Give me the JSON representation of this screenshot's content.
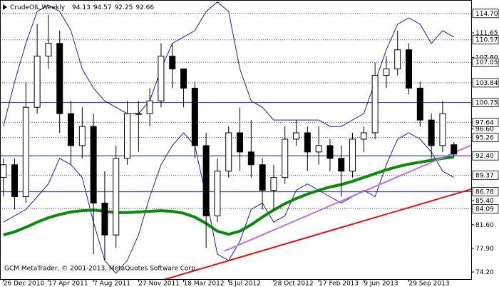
{
  "chart_data": {
    "type": "candlestick",
    "symbol": "CrudeOIL,Weekly",
    "header_ohlc": [
      94.13,
      94.57,
      92.25,
      92.66
    ],
    "footer": "GCM MetaTrader, © 2001-2013, MetaQuotes Software Corp.",
    "categories": [
      "26 Dec 2010",
      null,
      null,
      null,
      "17 Apr 2011",
      null,
      null,
      null,
      "7 Aug 2011",
      null,
      null,
      null,
      "27 Nov 2011",
      null,
      null,
      null,
      "18 Mar 2012",
      null,
      null,
      null,
      "8 Jul 2012",
      null,
      null,
      null,
      "28 Oct 2012",
      null,
      null,
      null,
      "17 Feb 2013",
      null,
      null,
      null,
      "9 Jun 2013",
      null,
      null,
      null,
      "29 Sep 2013",
      null,
      null,
      null,
      null
    ],
    "open": [
      89,
      91,
      86,
      100,
      108,
      110,
      99,
      94,
      97,
      85,
      80,
      92,
      99,
      99,
      101,
      108,
      106,
      103,
      94,
      83,
      90,
      96,
      93,
      91,
      87,
      89,
      95,
      96,
      93,
      94,
      92,
      90,
      95,
      96,
      105,
      106,
      109,
      103,
      98,
      94,
      94.13
    ],
    "high": [
      92,
      92,
      104,
      113,
      114.5,
      112,
      101,
      100,
      99,
      90,
      94,
      101,
      101,
      103,
      110,
      110,
      106,
      104,
      96,
      92,
      97,
      100,
      98,
      92,
      91,
      97,
      98,
      97,
      97,
      95,
      94,
      96,
      97,
      107,
      108,
      112,
      110,
      104,
      99,
      101,
      94.57
    ],
    "low": [
      86,
      84,
      85,
      99,
      106,
      96,
      91,
      92,
      77,
      76,
      78,
      91,
      93,
      97,
      100,
      103,
      100,
      92,
      78,
      82,
      89,
      90,
      89,
      84,
      84,
      88,
      94,
      90,
      91,
      90,
      86,
      89,
      93,
      95,
      103,
      105,
      102,
      97,
      92,
      93,
      92.25
    ],
    "close": [
      91,
      86,
      100,
      108,
      110,
      99,
      94,
      97,
      85,
      80,
      92,
      99,
      99,
      101,
      108,
      106,
      103,
      94,
      83,
      90,
      96,
      93,
      91,
      87,
      89,
      95,
      96,
      93,
      94,
      92,
      90,
      95,
      96,
      105,
      106,
      109,
      103,
      98,
      94,
      99,
      92.66
    ],
    "candle_color": "#000000",
    "series": [
      {
        "color": "#1c1ca8",
        "width": 1,
        "values": [
          97,
          104,
          110,
          115,
          116,
          115,
          112,
          106,
          103,
          101,
          100,
          99,
          99,
          101,
          106,
          110,
          111,
          112,
          115,
          116.5,
          115,
          106,
          101,
          100,
          98,
          98,
          98,
          98,
          98,
          97,
          97,
          98,
          99,
          104,
          109,
          113,
          114,
          113,
          110,
          112,
          111
        ]
      },
      {
        "color": "#1c1ca8",
        "width": 1,
        "values": [
          82,
          83,
          84,
          86,
          88,
          92,
          91,
          89,
          82,
          76,
          74,
          76,
          80,
          86,
          91,
          94,
          96,
          94,
          86,
          77,
          76,
          79,
          84,
          85,
          82,
          83,
          87,
          88,
          87,
          86,
          85,
          86,
          87,
          86,
          91,
          95,
          96,
          95,
          93,
          90,
          89
        ]
      },
      {
        "color": "#0a8a0a",
        "width": 4,
        "values": [
          80,
          80.5,
          81.2,
          82,
          82.7,
          83.2,
          83.6,
          83.8,
          83.9,
          83.7,
          83.5,
          83.5,
          83.6,
          83.7,
          83.8,
          83.7,
          83.4,
          82.8,
          81.8,
          80.6,
          80.1,
          80.6,
          81.6,
          82.8,
          83.9,
          84.9,
          85.7,
          86.4,
          87,
          87.5,
          87.9,
          88.4,
          89,
          89.6,
          90.2,
          90.7,
          91.1,
          91.4,
          91.7,
          92,
          92.2
        ]
      }
    ],
    "trend_lines": [
      {
        "color": "#e01010",
        "x": [
          14.2,
          41.6
        ],
        "y": [
          72.97,
          87.2
        ]
      },
      {
        "color": "#c070e0",
        "x": [
          19.6,
          41.6
        ],
        "y": [
          77.45,
          94.1
        ]
      }
    ],
    "xlim": [
      -0.3,
      41.6
    ],
    "ylim": [
      72.97,
      116.8
    ],
    "level_color": "#3548c0",
    "yticks": [
      {
        "value": 114.7,
        "label": "114.70",
        "style": "dotted"
      },
      {
        "value": 111.65,
        "label": "111.65",
        "style": "plain"
      },
      {
        "value": 110.57,
        "label": "110.57",
        "style": "dotted"
      },
      {
        "value": 107.8,
        "label": "107.80",
        "style": "plain"
      },
      {
        "value": 107.05,
        "label": "107.05",
        "style": "dotted"
      },
      {
        "value": 103.84,
        "label": "103.84",
        "style": "dotted"
      },
      {
        "value": 100.75,
        "label": "100.75",
        "style": "solid"
      },
      {
        "value": 97.64,
        "label": "97.64",
        "style": "dotted"
      },
      {
        "value": 96.6,
        "label": "96.60",
        "style": "plain"
      },
      {
        "value": 95.26,
        "label": "95.26",
        "style": "dotted"
      },
      {
        "value": 92.4,
        "label": "92.40",
        "style": "solid"
      },
      {
        "value": 89.37,
        "label": "89.37",
        "style": "dotted"
      },
      {
        "value": 86.78,
        "label": "86.78",
        "style": "solid"
      },
      {
        "value": 85.4,
        "label": "85.40",
        "style": "plain"
      },
      {
        "value": 84.09,
        "label": "84.09",
        "style": "dotted"
      },
      {
        "value": 81.6,
        "label": "81.60",
        "style": "plain"
      },
      {
        "value": 77.9,
        "label": "77.90",
        "style": "plain"
      },
      {
        "value": 74.2,
        "label": "74.20",
        "style": "plain"
      }
    ]
  }
}
